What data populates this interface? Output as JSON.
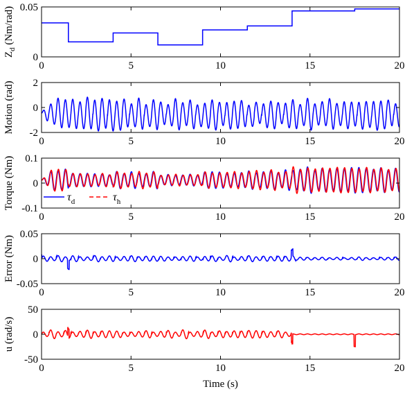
{
  "chart_data": [
    {
      "type": "line",
      "id": "zd",
      "ylabel": "Z",
      "ylabel_sub": "d",
      "ylabel_unit": " (Nm/rad)",
      "xlim": [
        0,
        20
      ],
      "ylim": [
        0,
        0.05
      ],
      "xticks": [
        0,
        5,
        10,
        15,
        20
      ],
      "yticks": [
        0,
        0.05
      ],
      "ytick_labels": [
        "0",
        "0.05"
      ],
      "grid": false,
      "series": [
        {
          "color": "#0000ff",
          "step": true,
          "x": [
            0,
            1.5,
            1.5,
            4.0,
            4.0,
            6.5,
            6.5,
            9.0,
            9.0,
            11.5,
            11.5,
            14.0,
            14.0,
            17.5,
            17.5,
            20
          ],
          "y": [
            0.034,
            0.034,
            0.015,
            0.015,
            0.024,
            0.024,
            0.012,
            0.012,
            0.027,
            0.027,
            0.031,
            0.031,
            0.046,
            0.046,
            0.048,
            0.048
          ]
        }
      ]
    },
    {
      "type": "line",
      "id": "motion",
      "ylabel": "Motion (rad)",
      "xlim": [
        0,
        20
      ],
      "ylim": [
        -2,
        2
      ],
      "xticks": [
        0,
        5,
        10,
        15,
        20
      ],
      "yticks": [
        -2,
        0,
        2
      ],
      "ytick_labels": [
        "-2",
        "0",
        "2"
      ],
      "grid": false,
      "series": [
        {
          "color": "#0000ff",
          "signal": "motion"
        }
      ]
    },
    {
      "type": "line",
      "id": "torque",
      "ylabel": "Torque (Nm)",
      "xlim": [
        0,
        20
      ],
      "ylim": [
        -0.1,
        0.1
      ],
      "xticks": [
        0,
        5,
        10,
        15,
        20
      ],
      "yticks": [
        -0.1,
        0,
        0.1
      ],
      "ytick_labels": [
        "-0.1",
        "0",
        "0.1"
      ],
      "grid": false,
      "legend": {
        "placement": "bottom-left",
        "entries": [
          {
            "symbol": "τ",
            "sub": "d",
            "color": "#0000ff",
            "dash": false
          },
          {
            "symbol": "τ",
            "sub": "h",
            "color": "#ff0000",
            "dash": true
          }
        ]
      },
      "series": [
        {
          "color": "#0000ff",
          "signal": "tau_d"
        },
        {
          "color": "#ff0000",
          "signal": "tau_h"
        }
      ]
    },
    {
      "type": "line",
      "id": "error",
      "ylabel": "Error (Nm)",
      "xlim": [
        0,
        20
      ],
      "ylim": [
        -0.05,
        0.05
      ],
      "xticks": [
        0,
        5,
        10,
        15,
        20
      ],
      "yticks": [
        -0.05,
        0,
        0.05
      ],
      "ytick_labels": [
        "-0.05",
        "0",
        "0.05"
      ],
      "grid": false,
      "series": [
        {
          "color": "#0000ff",
          "signal": "error"
        }
      ]
    },
    {
      "type": "line",
      "id": "u",
      "ylabel": "u (rad/s)",
      "xlabel": "Time (s)",
      "xlim": [
        0,
        20
      ],
      "ylim": [
        -50,
        50
      ],
      "xticks": [
        0,
        5,
        10,
        15,
        20
      ],
      "yticks": [
        -50,
        0,
        50
      ],
      "ytick_labels": [
        "-50",
        "0",
        "50"
      ],
      "grid": false,
      "series": [
        {
          "color": "#ff0000",
          "signal": "u"
        }
      ]
    }
  ]
}
